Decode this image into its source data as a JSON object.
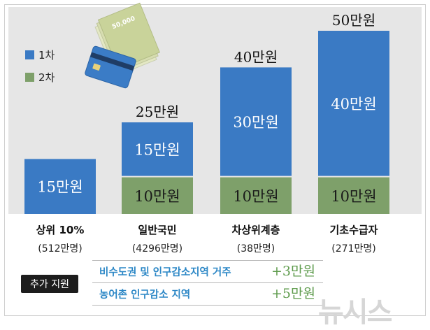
{
  "chart_data": {
    "type": "bar",
    "stacked": true,
    "categories": [
      "상위 10%",
      "일반국민",
      "차상위계층",
      "기초수급자"
    ],
    "category_populations": [
      "(512만명)",
      "(4296만명)",
      "(38만명)",
      "(271만명)"
    ],
    "series": [
      {
        "name": "2차",
        "color": "#7ea06a",
        "values": [
          0,
          10,
          10,
          10
        ],
        "labels": [
          "",
          "10만원",
          "10만원",
          "10만원"
        ]
      },
      {
        "name": "1차",
        "color": "#3a7ac4",
        "values": [
          15,
          15,
          30,
          40
        ],
        "labels": [
          "15만원",
          "15만원",
          "30만원",
          "40만원"
        ]
      }
    ],
    "totals": [
      "",
      "25만원",
      "40만원",
      "50만원"
    ],
    "ylim": [
      0,
      50
    ],
    "legend_position": "top-left"
  },
  "legend": [
    {
      "label": "1차",
      "color": "#3a7ac4"
    },
    {
      "label": "2차",
      "color": "#7ea06a"
    }
  ],
  "note": {
    "badge": "추가 지원",
    "rows": [
      {
        "text": "비수도권 및 인구감소지역 거주",
        "value": "+3만원"
      },
      {
        "text": "농어촌 인구감소 지역",
        "value": "+5만원"
      }
    ]
  },
  "illustration": {
    "bill_text": "50,000"
  },
  "watermark": "뉴시스"
}
